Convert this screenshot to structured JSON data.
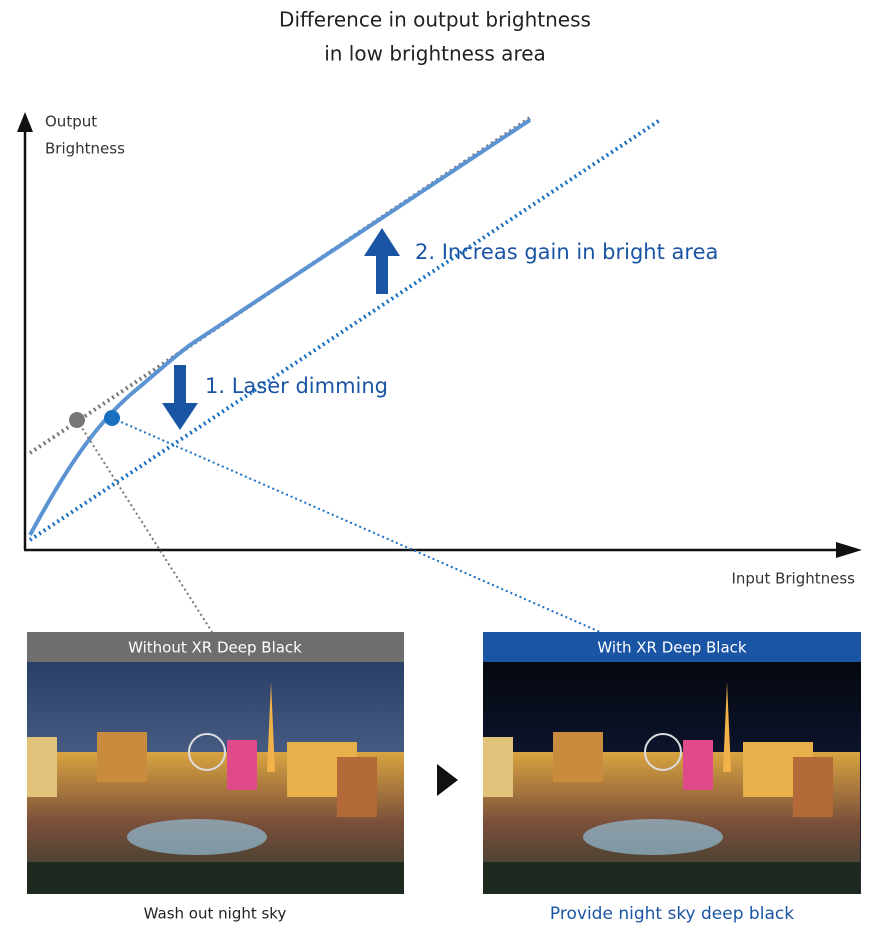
{
  "title": {
    "line1": "Difference in output brightness",
    "line2": "in low brightness area"
  },
  "axes": {
    "y_label_line1": "Output",
    "y_label_line2": "Brightness",
    "x_label": "Input Brightness"
  },
  "annotations": {
    "step1": "1. Laser dimming",
    "step2": "2. Increas gain in bright area"
  },
  "panels": [
    {
      "header": "Without XR Deep Black",
      "caption": "Wash out night sky"
    },
    {
      "header": "With XR Deep Black",
      "caption": "Provide night sky deep black"
    }
  ]
}
